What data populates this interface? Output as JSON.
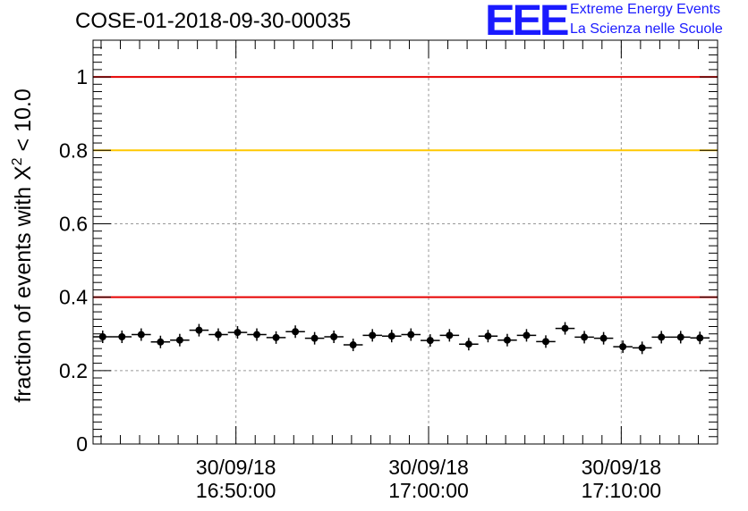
{
  "header": {
    "title": "COSE-01-2018-09-30-00035",
    "logo_text": "EEE",
    "logo_line1": "Extreme Energy Events",
    "logo_line2": "La Scienza nelle Scuole"
  },
  "chart_data": {
    "type": "scatter",
    "title": "COSE-01-2018-09-30-00035",
    "xlabel": "",
    "ylabel": "fraction of events with χ² < 10.0",
    "ylabel_parts": {
      "pre": "fraction of events with X",
      "sup": "2",
      "post": " < 10.0"
    },
    "ylim": [
      0,
      1.1
    ],
    "yticks": [
      0,
      0.2,
      0.4,
      0.6,
      0.8,
      1
    ],
    "ytick_labels": [
      "0",
      "0.2",
      "0.4",
      "0.6",
      "0.8",
      "1"
    ],
    "xlim": [
      "16:42:35",
      "17:15:00"
    ],
    "xticks": [
      {
        "time": "16:50:00",
        "date": "30/09/18"
      },
      {
        "time": "17:00:00",
        "date": "30/09/18"
      },
      {
        "time": "17:10:00",
        "date": "30/09/18"
      }
    ],
    "grid": true,
    "hlines": [
      {
        "y": 1.0,
        "color": "#e60000"
      },
      {
        "y": 0.8,
        "color": "#ffc800"
      },
      {
        "y": 0.4,
        "color": "#e60000"
      }
    ],
    "series": [
      {
        "color": "#000000",
        "bin_width_seconds": 60,
        "points": [
          {
            "x": "16:43:05",
            "y": 0.292
          },
          {
            "x": "16:44:05",
            "y": 0.292
          },
          {
            "x": "16:45:05",
            "y": 0.298
          },
          {
            "x": "16:46:05",
            "y": 0.278
          },
          {
            "x": "16:47:05",
            "y": 0.283
          },
          {
            "x": "16:48:05",
            "y": 0.31
          },
          {
            "x": "16:49:05",
            "y": 0.298
          },
          {
            "x": "16:50:05",
            "y": 0.304
          },
          {
            "x": "16:51:05",
            "y": 0.298
          },
          {
            "x": "16:52:05",
            "y": 0.29
          },
          {
            "x": "16:53:05",
            "y": 0.306
          },
          {
            "x": "16:54:05",
            "y": 0.288
          },
          {
            "x": "16:55:05",
            "y": 0.292
          },
          {
            "x": "16:56:05",
            "y": 0.27
          },
          {
            "x": "16:57:05",
            "y": 0.296
          },
          {
            "x": "16:58:05",
            "y": 0.294
          },
          {
            "x": "16:59:05",
            "y": 0.298
          },
          {
            "x": "17:00:05",
            "y": 0.282
          },
          {
            "x": "17:01:05",
            "y": 0.296
          },
          {
            "x": "17:02:05",
            "y": 0.272
          },
          {
            "x": "17:03:05",
            "y": 0.294
          },
          {
            "x": "17:04:05",
            "y": 0.283
          },
          {
            "x": "17:05:05",
            "y": 0.296
          },
          {
            "x": "17:06:05",
            "y": 0.279
          },
          {
            "x": "17:07:05",
            "y": 0.315
          },
          {
            "x": "17:08:05",
            "y": 0.291
          },
          {
            "x": "17:09:05",
            "y": 0.288
          },
          {
            "x": "17:10:05",
            "y": 0.265
          },
          {
            "x": "17:11:05",
            "y": 0.262
          },
          {
            "x": "17:12:05",
            "y": 0.291
          },
          {
            "x": "17:13:05",
            "y": 0.291
          },
          {
            "x": "17:14:05",
            "y": 0.289
          }
        ]
      }
    ]
  }
}
